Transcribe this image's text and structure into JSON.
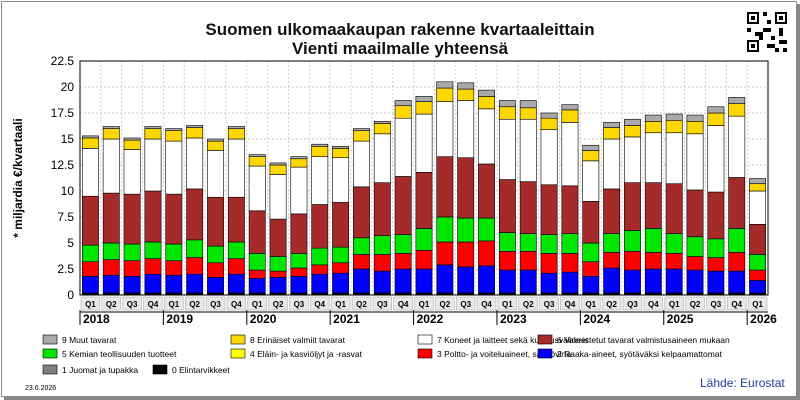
{
  "title": "Suomen ulkomaakaupan rakenne kvartaaleittain",
  "subtitle": "Vienti maailmalle yhteensä",
  "date_stamp": "23.6.2026",
  "source": "Lähde: Eurostat",
  "chart_data": {
    "type": "bar",
    "stacked": true,
    "title": "Suomen ulkomaakaupan rakenne kvartaaleittain",
    "subtitle": "Vienti maailmalle yhteensä",
    "ylabel": "* miljardia €/kvartaali",
    "ylim": [
      0,
      22.5
    ],
    "yticks": [
      0,
      2.5,
      5,
      7.5,
      10,
      12.5,
      15,
      17.5,
      20,
      22.5
    ],
    "grid": true,
    "categories": [
      "Q1",
      "Q2",
      "Q3",
      "Q4",
      "Q1",
      "Q2",
      "Q3",
      "Q4",
      "Q1",
      "Q2",
      "Q3",
      "Q4",
      "Q1",
      "Q2",
      "Q3",
      "Q4",
      "Q1",
      "Q2",
      "Q3",
      "Q4",
      "Q1",
      "Q2",
      "Q3",
      "Q4",
      "Q1",
      "Q2",
      "Q3",
      "Q4",
      "Q1",
      "Q2",
      "Q3",
      "Q4",
      "Q1"
    ],
    "years": [
      {
        "label": "2018",
        "start": 0
      },
      {
        "label": "2019",
        "start": 4
      },
      {
        "label": "2020",
        "start": 8
      },
      {
        "label": "2021",
        "start": 12
      },
      {
        "label": "2022",
        "start": 16
      },
      {
        "label": "2023",
        "start": 20
      },
      {
        "label": "2024",
        "start": 24
      },
      {
        "label": "2025",
        "start": 28
      },
      {
        "label": "2026",
        "start": 32
      }
    ],
    "series": [
      {
        "name": "0 Elintarvikkeet",
        "color": "#000000",
        "values": [
          0.2,
          0.2,
          0.2,
          0.2,
          0.2,
          0.2,
          0.2,
          0.2,
          0.2,
          0.2,
          0.2,
          0.2,
          0.2,
          0.2,
          0.2,
          0.2,
          0.2,
          0.2,
          0.2,
          0.2,
          0.2,
          0.2,
          0.2,
          0.2,
          0.2,
          0.2,
          0.2,
          0.2,
          0.2,
          0.2,
          0.2,
          0.2,
          0.2
        ]
      },
      {
        "name": "2 Raaka-aineet, syötäväksi kelpaamattomat",
        "color": "#0000ff",
        "values": [
          1.6,
          1.7,
          1.6,
          1.8,
          1.7,
          1.8,
          1.5,
          1.8,
          1.4,
          1.5,
          1.6,
          1.8,
          1.9,
          2.3,
          2.1,
          2.3,
          2.3,
          2.7,
          2.5,
          2.6,
          2.2,
          2.2,
          1.9,
          2.0,
          1.6,
          2.4,
          2.2,
          2.3,
          2.3,
          2.2,
          2.1,
          2.1,
          1.2
        ]
      },
      {
        "name": "3 Poltto- ja voiteluaineet, sähkövirta",
        "color": "#ff0000",
        "values": [
          1.4,
          1.5,
          1.5,
          1.5,
          1.4,
          1.6,
          1.4,
          1.5,
          0.8,
          0.6,
          0.8,
          0.9,
          1.0,
          1.4,
          1.6,
          1.5,
          1.8,
          2.2,
          2.4,
          2.4,
          1.8,
          1.8,
          1.9,
          1.8,
          1.4,
          1.5,
          1.8,
          1.6,
          1.5,
          1.3,
          1.3,
          1.8,
          1.0
        ]
      },
      {
        "name": "5 Kemian teollisuuden tuotteet",
        "color": "#00e600",
        "values": [
          1.6,
          1.6,
          1.6,
          1.6,
          1.6,
          1.7,
          1.6,
          1.6,
          1.6,
          1.4,
          1.4,
          1.6,
          1.5,
          1.6,
          1.8,
          1.8,
          2.1,
          2.4,
          2.3,
          2.2,
          1.8,
          1.7,
          1.8,
          1.9,
          1.8,
          1.8,
          2.0,
          2.3,
          1.9,
          1.9,
          1.8,
          2.3,
          1.5
        ]
      },
      {
        "name": "6 Valmistetut tavarat valmistusaineen mukaan",
        "color": "#a52a2a",
        "values": [
          4.7,
          4.8,
          4.8,
          4.9,
          4.8,
          4.9,
          4.7,
          4.3,
          4.1,
          3.6,
          3.8,
          4.2,
          4.3,
          4.9,
          5.1,
          5.6,
          5.4,
          5.8,
          5.8,
          5.2,
          5.1,
          5.0,
          4.8,
          4.6,
          4.0,
          4.3,
          4.6,
          4.4,
          4.8,
          4.5,
          4.5,
          4.9,
          2.9
        ]
      },
      {
        "name": "7 Koneet ja laitteet sekä kuljetusvälineet",
        "color": "#ffffff",
        "values": [
          4.6,
          5.2,
          4.3,
          5.0,
          5.1,
          4.9,
          4.5,
          5.6,
          4.3,
          4.3,
          4.5,
          4.6,
          4.3,
          4.4,
          4.7,
          5.6,
          5.6,
          5.3,
          5.5,
          5.3,
          5.8,
          6.0,
          5.3,
          6.1,
          3.9,
          4.8,
          4.4,
          4.8,
          4.9,
          5.4,
          6.4,
          5.9,
          3.2
        ]
      },
      {
        "name": "8 Erinäiset valmiit tavarat",
        "color": "#ffd700",
        "values": [
          1.0,
          1.0,
          0.9,
          1.0,
          1.0,
          1.0,
          0.9,
          1.0,
          0.9,
          0.9,
          0.8,
          1.0,
          0.9,
          1.0,
          1.0,
          1.2,
          1.2,
          1.3,
          1.1,
          1.2,
          1.2,
          1.1,
          1.1,
          1.2,
          1.0,
          1.1,
          1.1,
          1.1,
          1.2,
          1.2,
          1.2,
          1.2,
          0.7
        ]
      },
      {
        "name": "9 Muut tavarat",
        "color": "#a9a9a9",
        "values": [
          0.2,
          0.2,
          0.2,
          0.2,
          0.2,
          0.2,
          0.2,
          0.2,
          0.2,
          0.2,
          0.2,
          0.2,
          0.2,
          0.2,
          0.2,
          0.5,
          0.5,
          0.6,
          0.6,
          0.6,
          0.6,
          0.7,
          0.5,
          0.5,
          0.5,
          0.5,
          0.6,
          0.6,
          0.6,
          0.6,
          0.6,
          0.6,
          0.5
        ]
      },
      {
        "name": "1 Juomat ja tupakka",
        "color": "#808080",
        "values": [
          0,
          0,
          0,
          0,
          0,
          0,
          0,
          0,
          0,
          0,
          0,
          0,
          0,
          0,
          0,
          0,
          0,
          0,
          0,
          0,
          0,
          0,
          0,
          0,
          0,
          0,
          0,
          0,
          0,
          0,
          0,
          0,
          0
        ]
      },
      {
        "name": "4 Eläin- ja kasviöljyt ja -rasvat",
        "color": "#ffff00",
        "values": [
          0,
          0,
          0,
          0,
          0,
          0,
          0,
          0,
          0,
          0,
          0,
          0,
          0,
          0,
          0,
          0,
          0,
          0,
          0,
          0,
          0,
          0,
          0,
          0,
          0,
          0,
          0,
          0,
          0,
          0,
          0,
          0,
          0
        ]
      }
    ],
    "legend": [
      [
        "9 Muut tavarat",
        "8 Erinäiset valmiit tavarat",
        "7 Koneet ja laitteet sekä kuljetusvälineet",
        "6 Valmistetut tavarat valmistusaineen mukaan"
      ],
      [
        "5 Kemian teollisuuden tuotteet",
        "4 Eläin- ja kasviöljyt ja -rasvat",
        "3 Poltto- ja voiteluaineet, sähkövirta",
        "2 Raaka-aineet, syötäväksi kelpaamattomat"
      ],
      [
        "1 Juomat ja tupakka",
        "0 Elintarvikkeet"
      ]
    ],
    "legend_placement": "bottom"
  }
}
